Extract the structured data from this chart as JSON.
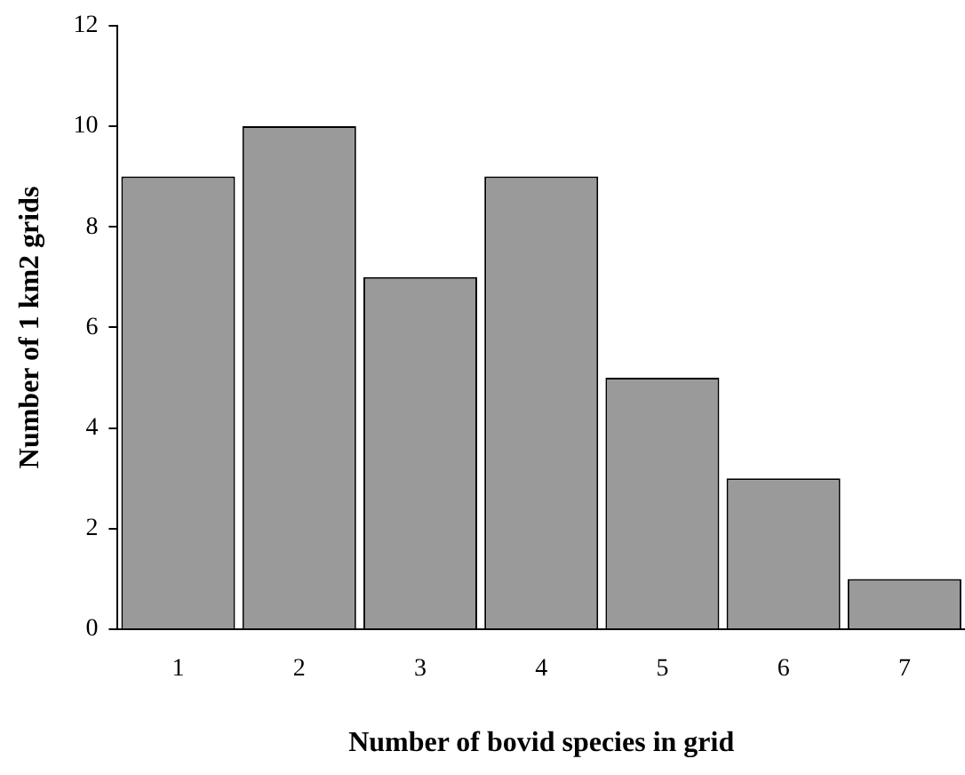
{
  "chart_data": {
    "type": "bar",
    "xlabel": "Number of bovid species in grid",
    "ylabel": "Number of 1 km2 grids",
    "categories": [
      "1",
      "2",
      "3",
      "4",
      "5",
      "6",
      "7"
    ],
    "values": [
      9,
      10,
      7,
      9,
      5,
      3,
      1
    ],
    "color": "#9a9a9a",
    "ylim": [
      0,
      12
    ],
    "yticks": [
      0,
      2,
      4,
      6,
      8,
      10,
      12
    ],
    "grid": false,
    "legend": false
  }
}
